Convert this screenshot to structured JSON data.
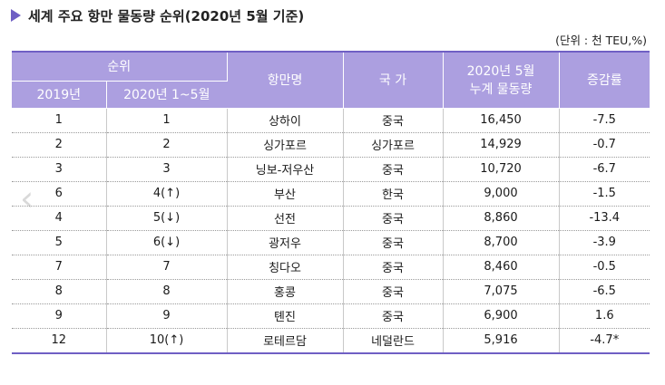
{
  "title": "세계 주요 항만 물동량 순위(2020년 5월 기준)",
  "unit_note": "(단위 : 천 TEU,%)",
  "headers": {
    "rank": "순위",
    "rank_2019": "2019년",
    "rank_2020": "2020년 1~5월",
    "port": "항만명",
    "country": "국 가",
    "volume_line1": "2020년 5월",
    "volume_line2": "누계 물동량",
    "change": "증감률"
  },
  "rows": [
    {
      "r2019": "1",
      "r2020": "1",
      "port": "상하이",
      "country": "중국",
      "volume": "16,450",
      "change": "-7.5"
    },
    {
      "r2019": "2",
      "r2020": "2",
      "port": "싱가포르",
      "country": "싱가포르",
      "volume": "14,929",
      "change": "-0.7"
    },
    {
      "r2019": "3",
      "r2020": "3",
      "port": "닝보-저우산",
      "country": "중국",
      "volume": "10,720",
      "change": "-6.7"
    },
    {
      "r2019": "6",
      "r2020": "4(↑)",
      "port": "부산",
      "country": "한국",
      "volume": "9,000",
      "change": "-1.5"
    },
    {
      "r2019": "4",
      "r2020": "5(↓)",
      "port": "선전",
      "country": "중국",
      "volume": "8,860",
      "change": "-13.4"
    },
    {
      "r2019": "5",
      "r2020": "6(↓)",
      "port": "광저우",
      "country": "중국",
      "volume": "8,700",
      "change": "-3.9"
    },
    {
      "r2019": "7",
      "r2020": "7",
      "port": "칭다오",
      "country": "중국",
      "volume": "8,460",
      "change": "-0.5"
    },
    {
      "r2019": "8",
      "r2020": "8",
      "port": "홍콩",
      "country": "중국",
      "volume": "7,075",
      "change": "-6.5"
    },
    {
      "r2019": "9",
      "r2020": "9",
      "port": "톈진",
      "country": "중국",
      "volume": "6,900",
      "change": "1.6"
    },
    {
      "r2019": "12",
      "r2020": "10(↑)",
      "port": "로테르담",
      "country": "네덜란드",
      "volume": "5,916",
      "change": "-4.7*"
    }
  ],
  "icons": {
    "title_marker": "triangle-right-icon",
    "prev_arrow": "chevron-left-icon"
  },
  "colors": {
    "header_bg": "#ac9fe0",
    "accent": "#6f5fc4"
  }
}
